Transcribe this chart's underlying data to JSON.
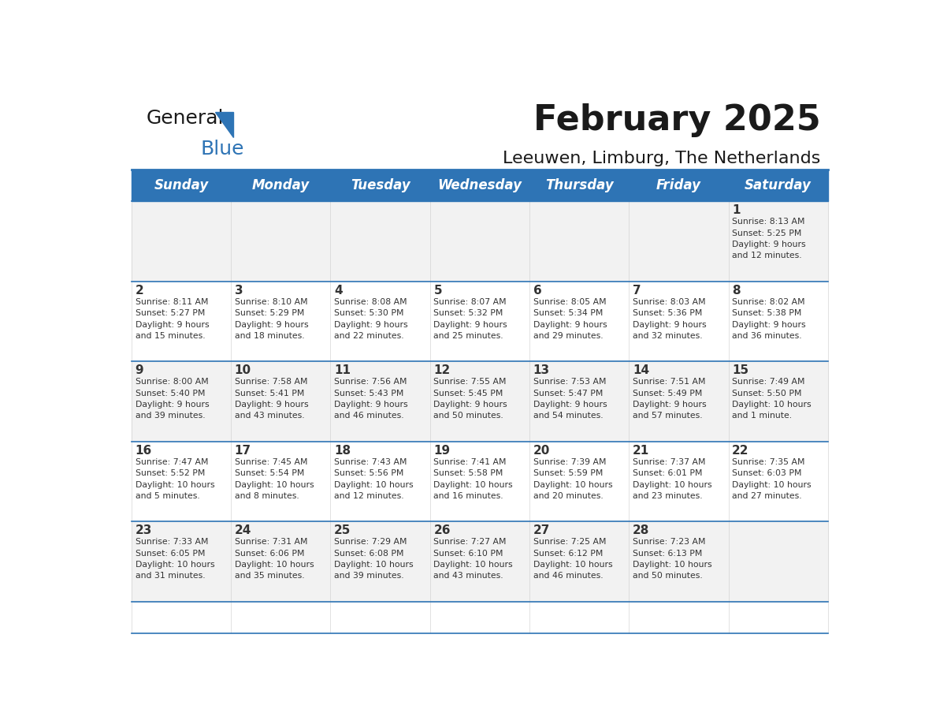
{
  "title": "February 2025",
  "subtitle": "Leeuwen, Limburg, The Netherlands",
  "header_bg": "#2E74B5",
  "header_text_color": "#FFFFFF",
  "day_names": [
    "Sunday",
    "Monday",
    "Tuesday",
    "Wednesday",
    "Thursday",
    "Friday",
    "Saturday"
  ],
  "cell_bg_even": "#F2F2F2",
  "cell_bg_odd": "#FFFFFF",
  "cell_border_color": "#2E74B5",
  "day_num_color": "#333333",
  "info_text_color": "#333333",
  "calendar_data": [
    [
      null,
      null,
      null,
      null,
      null,
      null,
      1
    ],
    [
      2,
      3,
      4,
      5,
      6,
      7,
      8
    ],
    [
      9,
      10,
      11,
      12,
      13,
      14,
      15
    ],
    [
      16,
      17,
      18,
      19,
      20,
      21,
      22
    ],
    [
      23,
      24,
      25,
      26,
      27,
      28,
      null
    ]
  ],
  "sunrise_data": {
    "1": "Sunrise: 8:13 AM\nSunset: 5:25 PM\nDaylight: 9 hours\nand 12 minutes.",
    "2": "Sunrise: 8:11 AM\nSunset: 5:27 PM\nDaylight: 9 hours\nand 15 minutes.",
    "3": "Sunrise: 8:10 AM\nSunset: 5:29 PM\nDaylight: 9 hours\nand 18 minutes.",
    "4": "Sunrise: 8:08 AM\nSunset: 5:30 PM\nDaylight: 9 hours\nand 22 minutes.",
    "5": "Sunrise: 8:07 AM\nSunset: 5:32 PM\nDaylight: 9 hours\nand 25 minutes.",
    "6": "Sunrise: 8:05 AM\nSunset: 5:34 PM\nDaylight: 9 hours\nand 29 minutes.",
    "7": "Sunrise: 8:03 AM\nSunset: 5:36 PM\nDaylight: 9 hours\nand 32 minutes.",
    "8": "Sunrise: 8:02 AM\nSunset: 5:38 PM\nDaylight: 9 hours\nand 36 minutes.",
    "9": "Sunrise: 8:00 AM\nSunset: 5:40 PM\nDaylight: 9 hours\nand 39 minutes.",
    "10": "Sunrise: 7:58 AM\nSunset: 5:41 PM\nDaylight: 9 hours\nand 43 minutes.",
    "11": "Sunrise: 7:56 AM\nSunset: 5:43 PM\nDaylight: 9 hours\nand 46 minutes.",
    "12": "Sunrise: 7:55 AM\nSunset: 5:45 PM\nDaylight: 9 hours\nand 50 minutes.",
    "13": "Sunrise: 7:53 AM\nSunset: 5:47 PM\nDaylight: 9 hours\nand 54 minutes.",
    "14": "Sunrise: 7:51 AM\nSunset: 5:49 PM\nDaylight: 9 hours\nand 57 minutes.",
    "15": "Sunrise: 7:49 AM\nSunset: 5:50 PM\nDaylight: 10 hours\nand 1 minute.",
    "16": "Sunrise: 7:47 AM\nSunset: 5:52 PM\nDaylight: 10 hours\nand 5 minutes.",
    "17": "Sunrise: 7:45 AM\nSunset: 5:54 PM\nDaylight: 10 hours\nand 8 minutes.",
    "18": "Sunrise: 7:43 AM\nSunset: 5:56 PM\nDaylight: 10 hours\nand 12 minutes.",
    "19": "Sunrise: 7:41 AM\nSunset: 5:58 PM\nDaylight: 10 hours\nand 16 minutes.",
    "20": "Sunrise: 7:39 AM\nSunset: 5:59 PM\nDaylight: 10 hours\nand 20 minutes.",
    "21": "Sunrise: 7:37 AM\nSunset: 6:01 PM\nDaylight: 10 hours\nand 23 minutes.",
    "22": "Sunrise: 7:35 AM\nSunset: 6:03 PM\nDaylight: 10 hours\nand 27 minutes.",
    "23": "Sunrise: 7:33 AM\nSunset: 6:05 PM\nDaylight: 10 hours\nand 31 minutes.",
    "24": "Sunrise: 7:31 AM\nSunset: 6:06 PM\nDaylight: 10 hours\nand 35 minutes.",
    "25": "Sunrise: 7:29 AM\nSunset: 6:08 PM\nDaylight: 10 hours\nand 39 minutes.",
    "26": "Sunrise: 7:27 AM\nSunset: 6:10 PM\nDaylight: 10 hours\nand 43 minutes.",
    "27": "Sunrise: 7:25 AM\nSunset: 6:12 PM\nDaylight: 10 hours\nand 46 minutes.",
    "28": "Sunrise: 7:23 AM\nSunset: 6:13 PM\nDaylight: 10 hours\nand 50 minutes."
  }
}
